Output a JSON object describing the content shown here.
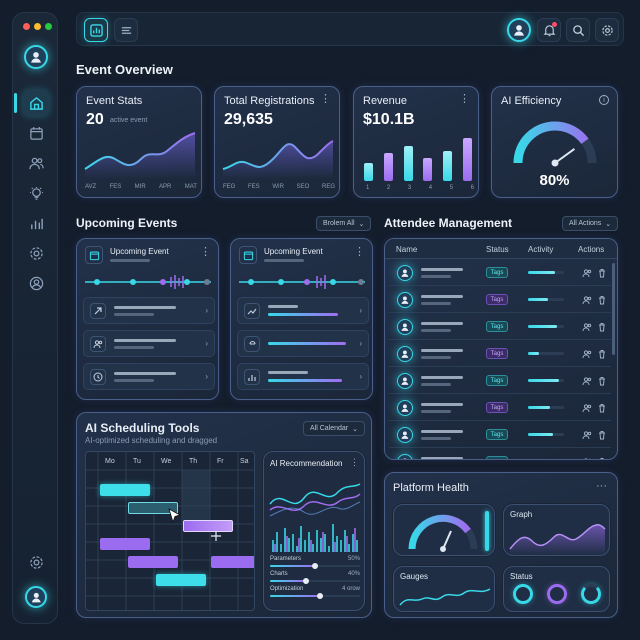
{
  "sidebar": {
    "items": [
      "home",
      "calendar",
      "users",
      "ideas",
      "analytics",
      "settings",
      "profile"
    ]
  },
  "overview": {
    "title": "Event Overview"
  },
  "stats": [
    {
      "title": "Event Stats",
      "value": "20",
      "sub": "active event",
      "xlabels": [
        "AVZ",
        "FES",
        "MIR",
        "APR",
        "MAT"
      ]
    },
    {
      "title": "Total Registrations",
      "value": "29,635",
      "xlabels": [
        "FEG",
        "FES",
        "WIR",
        "SEO",
        "REG"
      ]
    },
    {
      "title": "Revenue",
      "value": "$10.1B",
      "xlabels": [
        "1",
        "2",
        "3",
        "4",
        "5",
        "6"
      ],
      "bars": [
        0.35,
        0.55,
        0.7,
        0.45,
        0.6,
        0.85
      ]
    },
    {
      "title": "AI Efficiency",
      "value": "80%",
      "level": 0.8
    }
  ],
  "upcoming": {
    "title": "Upcoming Events",
    "filter": "Brolem All",
    "cards": [
      {
        "title": "Upcoming Event"
      },
      {
        "title": "Upcoming Event"
      }
    ]
  },
  "attendees": {
    "title": "Attendee Management",
    "filter": "All Actions",
    "headers": [
      "Name",
      "Status",
      "Activity",
      "Actions"
    ],
    "tag_label": "Tags",
    "rows": [
      {
        "tag": "teal",
        "activity": 0.75
      },
      {
        "tag": "purple",
        "activity": 0.55
      },
      {
        "tag": "teal",
        "activity": 0.8
      },
      {
        "tag": "purple",
        "activity": 0.3
      },
      {
        "tag": "teal",
        "activity": 0.85
      },
      {
        "tag": "purple",
        "activity": 0.6
      },
      {
        "tag": "teal",
        "activity": 0.7
      },
      {
        "tag": "teal",
        "activity": 0.25
      }
    ]
  },
  "scheduling": {
    "title": "AI Scheduling Tools",
    "subtitle": "AI-optimized scheduling and dragged",
    "filter": "All Calendar",
    "days": [
      "Mo",
      "Tu",
      "We",
      "Th",
      "Fr",
      "Sa"
    ]
  },
  "recommendation": {
    "title": "AI Recommendation",
    "params": [
      {
        "label": "Parameters",
        "value": "50%",
        "level": 0.5
      },
      {
        "label": "Charts",
        "value": "40%",
        "level": 0.4
      },
      {
        "label": "Optimization",
        "value": "4 orow",
        "level": 0.55
      }
    ]
  },
  "health": {
    "title": "Platform Health",
    "graph": "Graph",
    "gauges": "Gauges",
    "status": "Status"
  },
  "colors": {
    "teal": "#38d8e8",
    "purple": "#9b6cf0",
    "bg": "#131d2b"
  }
}
